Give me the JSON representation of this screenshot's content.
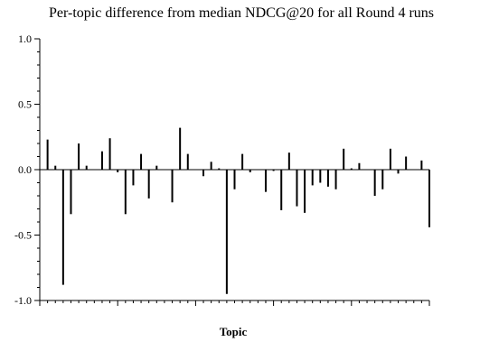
{
  "chart_data": {
    "type": "bar",
    "title": "Per-topic difference from median NDCG@20 for all Round 4 runs",
    "xlabel": "Topic",
    "ylabel": "",
    "ylim": [
      -1.0,
      1.0
    ],
    "yticks": [
      "1.0",
      "0.5",
      "0.0",
      "-0.5",
      "-1.0"
    ],
    "grid": false,
    "legend": "none",
    "bar_color": "#000000",
    "topics": 50,
    "values": [
      0.23,
      0.03,
      -0.88,
      -0.34,
      0.2,
      0.03,
      0.0,
      0.14,
      0.24,
      -0.02,
      -0.34,
      -0.12,
      0.12,
      -0.22,
      0.03,
      0.0,
      -0.25,
      0.32,
      0.12,
      0.0,
      -0.05,
      0.06,
      0.01,
      -0.95,
      -0.15,
      0.12,
      -0.02,
      0.0,
      -0.17,
      -0.01,
      -0.31,
      0.13,
      -0.28,
      -0.33,
      -0.12,
      -0.1,
      -0.13,
      -0.15,
      0.16,
      0.01,
      0.05,
      0.0,
      -0.2,
      -0.15,
      0.16,
      -0.03,
      0.1,
      0.0,
      0.07,
      -0.44
    ]
  }
}
